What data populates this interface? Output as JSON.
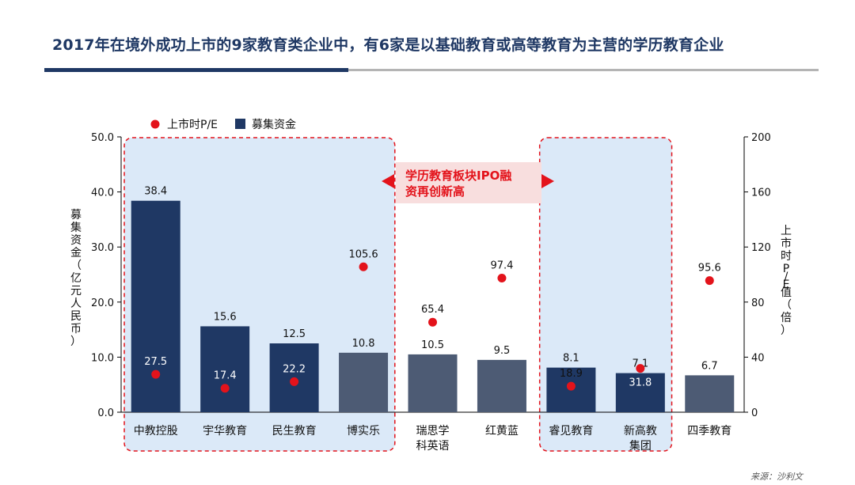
{
  "page": {
    "title": "2017年在境外成功上市的9家教育类企业中，有6家是以基础教育或高等教育为主营的学历教育企业",
    "source": "来源：沙利文"
  },
  "colors": {
    "title": "#1f3864",
    "bar_dark": "#1f3864",
    "bar_gray": "#4d5b74",
    "pe_dot": "#e3131b",
    "highlight_fill": "#dbe9f8",
    "highlight_border": "#e3131b",
    "callout_fill": "#f8dede",
    "callout_text": "#e3131b"
  },
  "chart_data": {
    "type": "bar",
    "categories": [
      "中教控股",
      "宇华教育",
      "民生教育",
      "博实乐",
      "瑞思学科英语",
      "红黄蓝",
      "睿见教育",
      "新高教集团",
      "四季教育"
    ],
    "series": [
      {
        "name": "募集资金",
        "axis": "left",
        "type": "bar",
        "values": [
          38.4,
          15.6,
          12.5,
          10.8,
          10.5,
          9.5,
          8.1,
          7.1,
          6.7
        ],
        "colors": [
          "#1f3864",
          "#1f3864",
          "#1f3864",
          "#4d5b74",
          "#4d5b74",
          "#4d5b74",
          "#1f3864",
          "#1f3864",
          "#4d5b74"
        ]
      },
      {
        "name": "上市时P/E",
        "axis": "right",
        "type": "scatter",
        "values": [
          27.5,
          17.4,
          22.2,
          105.6,
          65.4,
          97.4,
          18.9,
          31.8,
          95.6
        ]
      }
    ],
    "ylabel": "募集资金（亿元人民币）",
    "y2label": "上市时P/E值（倍）",
    "ylim": [
      0,
      50
    ],
    "y2lim": [
      0,
      200
    ],
    "yticks": [
      "0.0",
      "10.0",
      "20.0",
      "30.0",
      "40.0",
      "50.0"
    ],
    "y2ticks": [
      "0",
      "40",
      "80",
      "120",
      "160",
      "200"
    ],
    "legend": {
      "position": "top-left",
      "items": [
        "上市时P/E",
        "募集资金"
      ]
    },
    "annotation": {
      "text": "学历教育板块IPO融资再创新高",
      "lines": [
        "学历教育板块IPO融",
        "资再创新高"
      ]
    },
    "highlight_groups": [
      [
        0,
        1,
        2,
        3
      ],
      [
        6,
        7
      ]
    ]
  }
}
